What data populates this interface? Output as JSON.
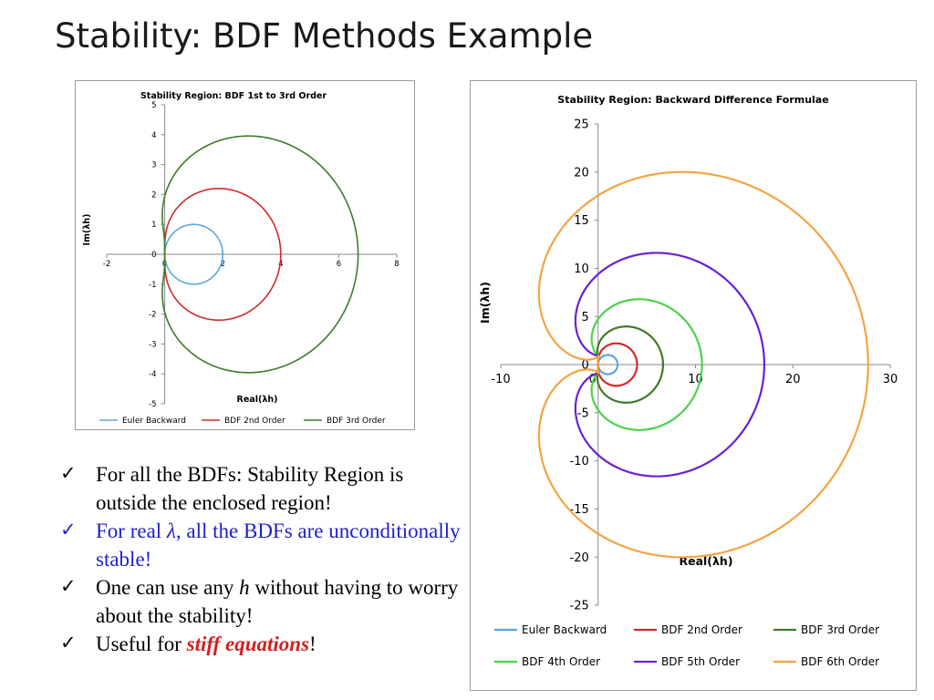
{
  "slide": {
    "title": "Stability: BDF Methods Example",
    "bullets": [
      {
        "text": "For all the BDFs: Stability Region is outside the enclosed region!",
        "color": "#000000"
      },
      {
        "prefix": "For real ",
        "symbol": "λ",
        "suffix": ", all the BDFs are unconditionally stable!",
        "color": "#2020cc"
      },
      {
        "prefix": "One can use any ",
        "symbol": "h",
        "suffix": " without having to worry about the stability!",
        "color": "#000000"
      },
      {
        "prefix": "Useful for ",
        "emphasis": "stiff equations",
        "suffix": "!",
        "emphasis_color": "#d32020",
        "color": "#000000"
      }
    ],
    "check_icon": "checkmark-icon"
  },
  "chart_data": [
    {
      "type": "line",
      "title": "Stability Region: BDF 1st to 3rd Order",
      "xlabel": "Real(λh)",
      "ylabel": "Im(λh)",
      "xlim": [
        -2,
        8
      ],
      "ylim": [
        -5,
        5
      ],
      "xticks": [
        "-2",
        "0",
        "2",
        "4",
        "6",
        "8"
      ],
      "yticks": [
        "-5",
        "-4",
        "-3",
        "-2",
        "-1",
        "0",
        "1",
        "2",
        "3",
        "4",
        "5"
      ],
      "grid": false,
      "legend_position": "bottom",
      "series": [
        {
          "name": "Euler Backward",
          "order": 1,
          "color": "#5aa8dc"
        },
        {
          "name": "BDF 2nd Order",
          "order": 2,
          "color": "#d22a2a"
        },
        {
          "name": "BDF 3rd Order",
          "order": 3,
          "color": "#3f7a2a"
        }
      ]
    },
    {
      "type": "line",
      "title": "Stability Region: Backward Difference Formulae",
      "xlabel": "Real(λh)",
      "ylabel": "Im(λh)",
      "xlim": [
        -10,
        30
      ],
      "ylim": [
        -25,
        25
      ],
      "xticks": [
        "-10",
        "0",
        "10",
        "20",
        "30"
      ],
      "yticks": [
        "-25",
        "-20",
        "-15",
        "-10",
        "-5",
        "0",
        "5",
        "10",
        "15",
        "20",
        "25"
      ],
      "grid": false,
      "legend_position": "bottom",
      "series": [
        {
          "name": "Euler Backward",
          "order": 1,
          "color": "#5aa8dc"
        },
        {
          "name": "BDF 2nd Order",
          "order": 2,
          "color": "#d22a2a"
        },
        {
          "name": "BDF 3rd Order",
          "order": 3,
          "color": "#3f7a2a"
        },
        {
          "name": "BDF 4th Order",
          "order": 4,
          "color": "#4cd24c"
        },
        {
          "name": "BDF 5th Order",
          "order": 5,
          "color": "#6a1fd8"
        },
        {
          "name": "BDF 6th Order",
          "order": 6,
          "color": "#f4a443"
        }
      ]
    }
  ]
}
